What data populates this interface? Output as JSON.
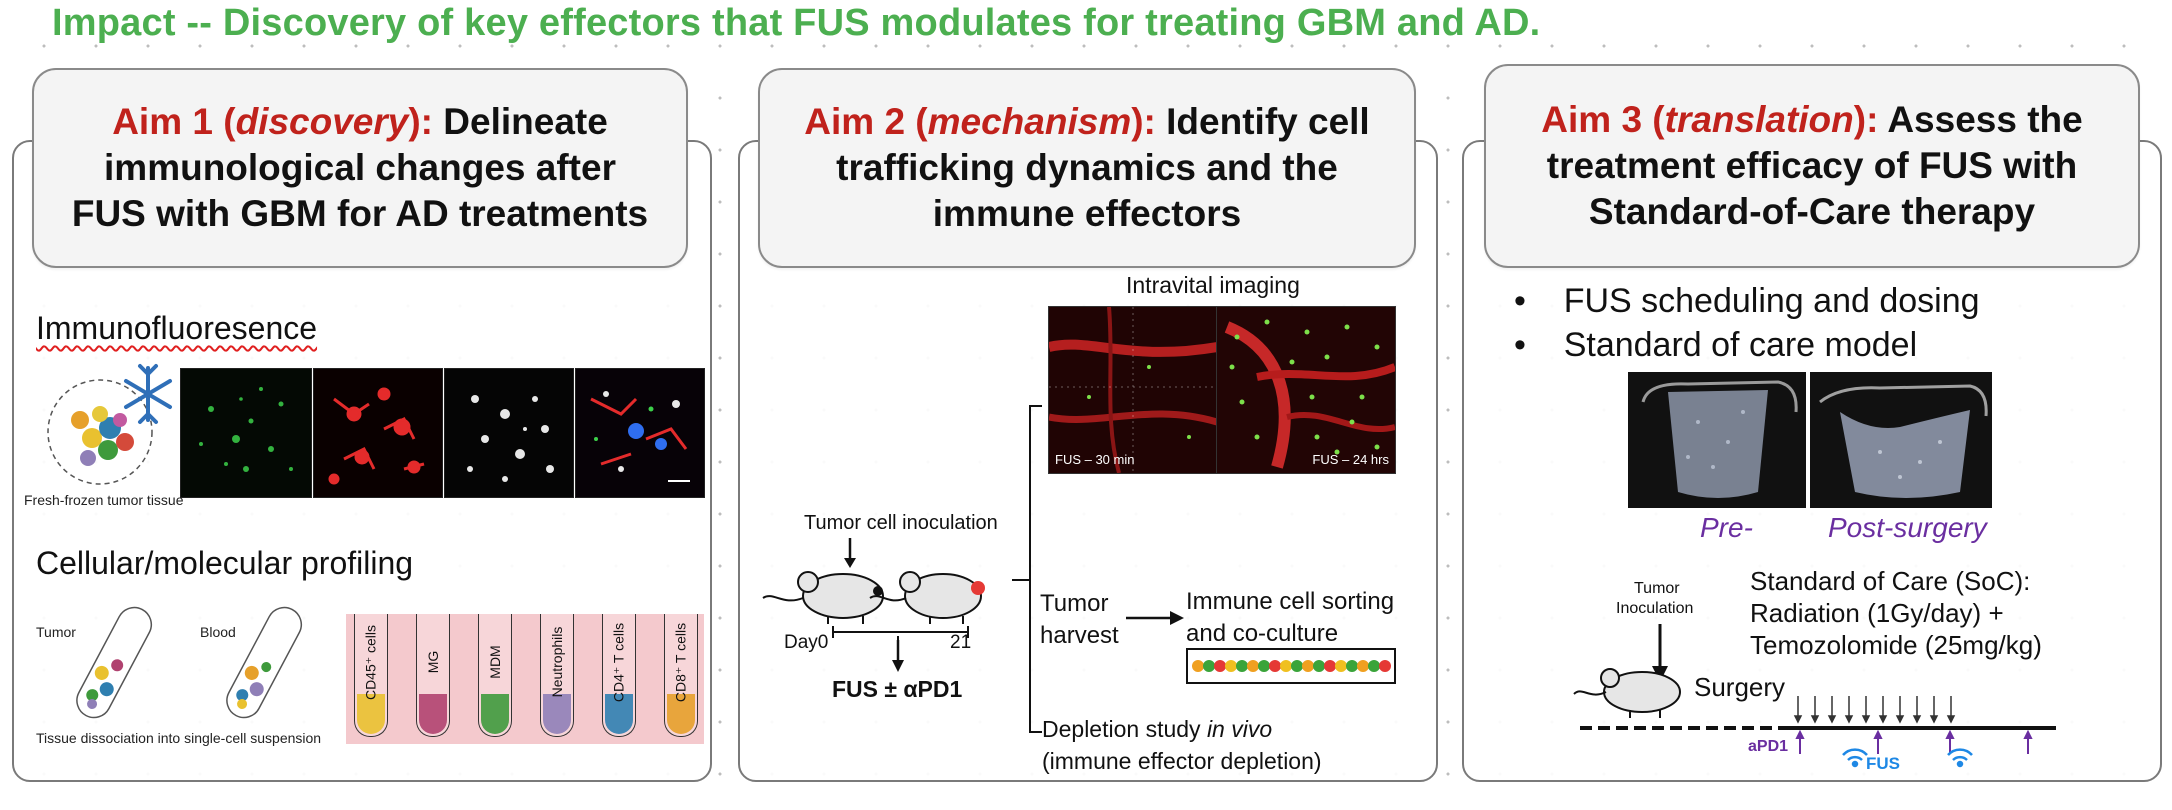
{
  "headline": "Impact -- Discovery of key effectors that FUS modulates for treating GBM and AD.",
  "aim1": {
    "prefix": "Aim 1 (",
    "keyword": "discovery",
    "suffix": "):",
    "line1_rest": " Delineate",
    "line2": "immunological changes after",
    "line3": "FUS with GBM for AD treatments",
    "if_label": "Immunofluoresence",
    "fresh_frozen": "Fresh-frozen tumor tissue",
    "profiling_label": "Cellular/molecular profiling",
    "tumor": "Tumor",
    "blood": "Blood",
    "dissociation": "Tissue dissociation into single-cell suspension",
    "tubes": [
      "CD45⁺ cells",
      "MG",
      "MDM",
      "Neutrophils",
      "CD4⁺ T cells",
      "CD8⁺ T cells"
    ],
    "tube_colors": [
      "#e9c12f",
      "#b0426f",
      "#3e9a3c",
      "#8f7fb7",
      "#2f7fb0",
      "#e6a02a"
    ]
  },
  "aim2": {
    "prefix": "Aim 2 (",
    "keyword": "mechanism",
    "suffix": "):",
    "line1_rest": " Identify cell",
    "line2": "trafficking dynamics and the",
    "line3": "immune effectors",
    "intravital": "Intravital imaging",
    "fus30": "FUS – 30 min",
    "fus24": "FUS – 24 hrs",
    "inoculation": "Tumor cell inoculation",
    "day0": "Day0",
    "day21": "21",
    "fus_apd1": "FUS ± αPD1",
    "tumor_harvest_1": "Tumor",
    "tumor_harvest_2": "harvest",
    "sorting_1": "Immune cell sorting",
    "sorting_2": "and co-culture",
    "depletion_1": "Depletion study ",
    "depletion_italic": "in vivo",
    "depletion_2": "(immune effector depletion)"
  },
  "aim3": {
    "prefix": "Aim 3 (",
    "keyword": "translation",
    "suffix": "):",
    "line1_rest": " Assess the",
    "line2": "treatment efficacy of FUS with",
    "line3": "Standard-of-Care therapy",
    "bullets": [
      "FUS scheduling and dosing",
      "Standard of care model"
    ],
    "pre": "Pre-",
    "post": "Post-surgery",
    "tumor_inoc_1": "Tumor",
    "tumor_inoc_2": "Inoculation",
    "soc_1": "Standard of Care (SoC):",
    "soc_2": "Radiation (1Gy/day) +",
    "soc_3": "Temozolomide (25mg/kg)",
    "surgery": "Surgery",
    "apd1": "aPD1",
    "fus": "FUS"
  },
  "colors": {
    "headline": "#4caf50",
    "aim_keyword": "#c0221c",
    "purple": "#6a2ea0",
    "fus_blue": "#1e88e5"
  }
}
